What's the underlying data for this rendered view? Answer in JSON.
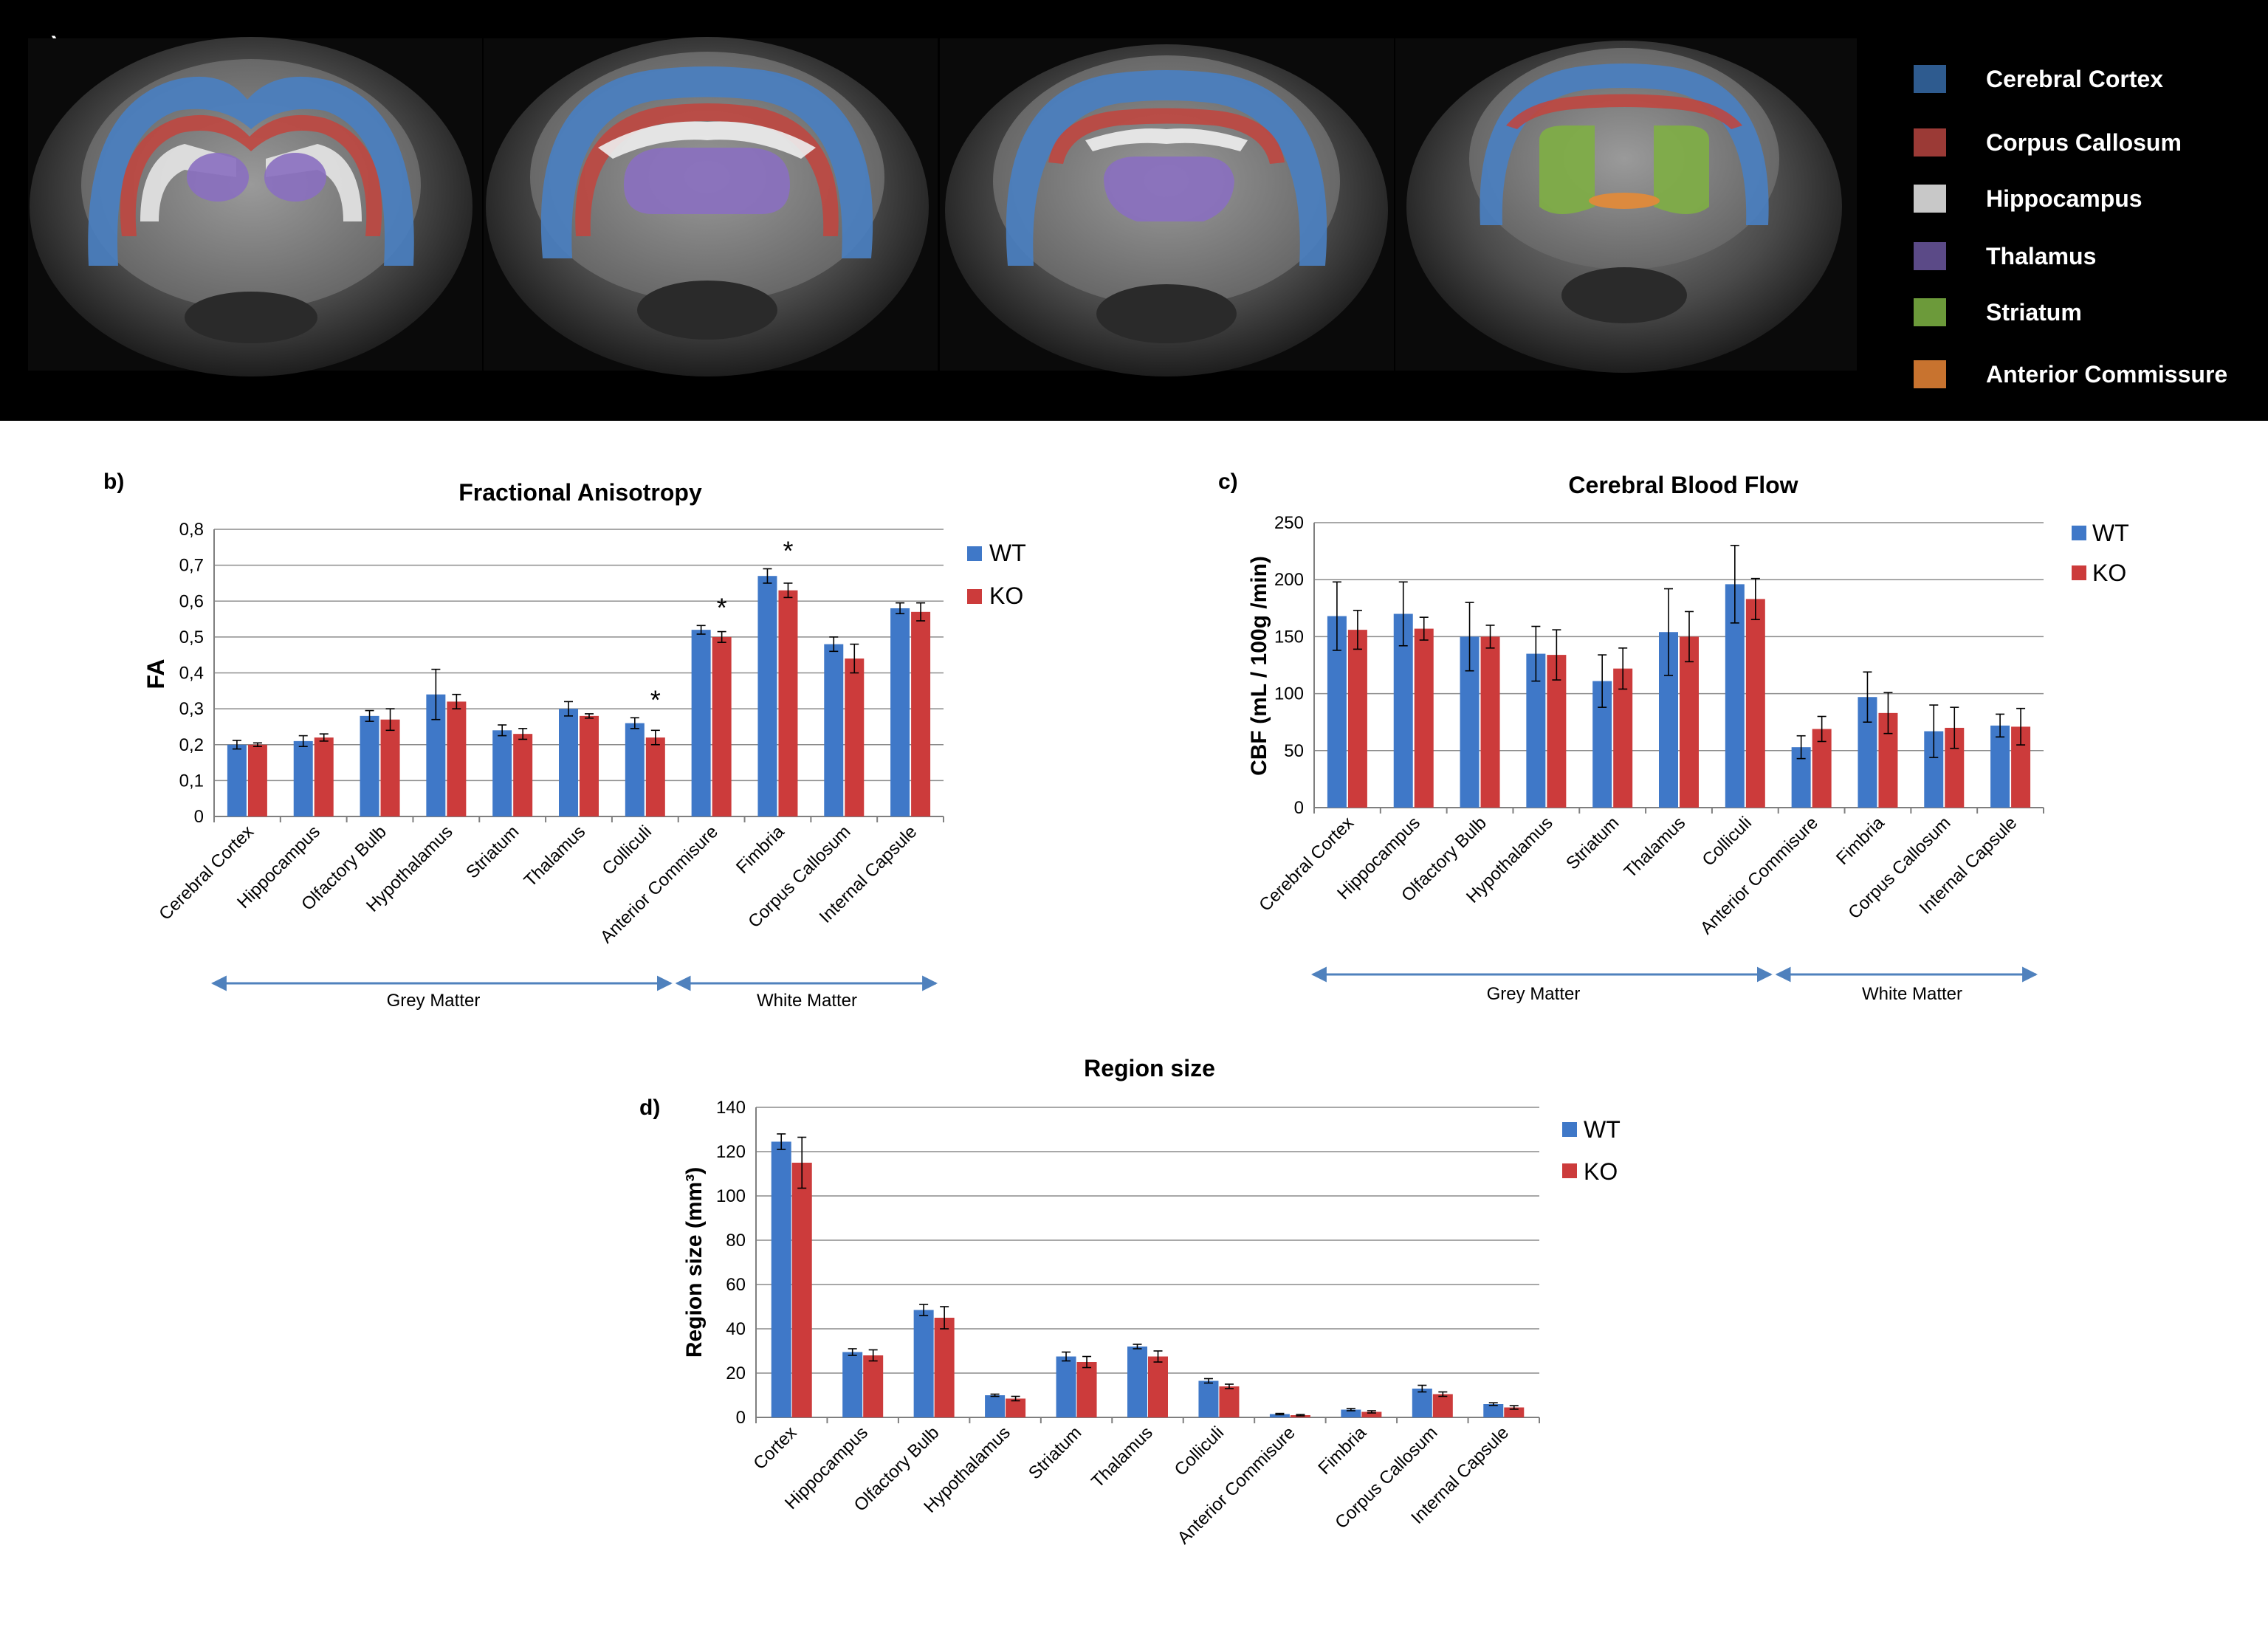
{
  "panel_a": {
    "label": "a)",
    "legend": [
      {
        "name": "Cerebral Cortex",
        "color": "#2e5b8f"
      },
      {
        "name": "Corpus Callosum",
        "color": "#9b3a36"
      },
      {
        "name": "Hippocampus",
        "color": "#c8c8c8"
      },
      {
        "name": "Thalamus",
        "color": "#5b4a87"
      },
      {
        "name": "Striatum",
        "color": "#6c9a3a"
      },
      {
        "name": "Anterior Commissure",
        "color": "#c8732f"
      }
    ]
  },
  "series_colors": {
    "WT": "#3f78c8",
    "KO": "#cc3b3b",
    "arrow": "#4f81bd"
  },
  "chart_data": [
    {
      "panel": "b)",
      "type": "bar",
      "title": "Fractional Anisotropy",
      "xlabel": "",
      "ylabel": "FA",
      "ylim": [
        0,
        0.8
      ],
      "yticks": [
        "0",
        "0,1",
        "0,2",
        "0,3",
        "0,4",
        "0,5",
        "0,6",
        "0,7",
        "0,8"
      ],
      "grid": true,
      "legend_position": "right",
      "categories": [
        "Cerebral Cortex",
        "Hippocampus",
        "Olfactory Bulb",
        "Hypothalamus",
        "Striatum",
        "Thalamus",
        "Colliculi",
        "Anterior Commisure",
        "Fimbria",
        "Corpus Callosum",
        "Internal Capsule"
      ],
      "series": [
        {
          "name": "WT",
          "values": [
            0.2,
            0.21,
            0.28,
            0.34,
            0.24,
            0.3,
            0.26,
            0.52,
            0.67,
            0.48,
            0.58
          ],
          "errors": [
            0.012,
            0.015,
            0.015,
            0.07,
            0.015,
            0.02,
            0.015,
            0.012,
            0.02,
            0.02,
            0.015
          ]
        },
        {
          "name": "KO",
          "values": [
            0.2,
            0.22,
            0.27,
            0.32,
            0.23,
            0.28,
            0.22,
            0.5,
            0.63,
            0.44,
            0.57
          ],
          "errors": [
            0.005,
            0.01,
            0.03,
            0.02,
            0.015,
            0.006,
            0.02,
            0.015,
            0.02,
            0.04,
            0.025
          ]
        }
      ],
      "significance": [
        {
          "category": "Colliculi",
          "label": "*"
        },
        {
          "category": "Anterior Commisure",
          "label": "*"
        },
        {
          "category": "Fimbria",
          "label": "*"
        }
      ],
      "groups": [
        {
          "label": "Grey Matter",
          "from": "Cerebral Cortex",
          "to": "Colliculi"
        },
        {
          "label": "White Matter",
          "from": "Anterior Commisure",
          "to": "Internal Capsule"
        }
      ]
    },
    {
      "panel": "c)",
      "type": "bar",
      "title": "Cerebral Blood Flow",
      "xlabel": "",
      "ylabel": "CBF (mL / 100g /min)",
      "ylim": [
        0,
        250
      ],
      "yticks": [
        "0",
        "50",
        "100",
        "150",
        "200",
        "250"
      ],
      "grid": true,
      "legend_position": "right",
      "categories": [
        "Cerebral Cortex",
        "Hippocampus",
        "Olfactory Bulb",
        "Hypothalamus",
        "Striatum",
        "Thalamus",
        "Colliculi",
        "Anterior Commisure",
        "Fimbria",
        "Corpus Callosum",
        "Internal Capsule"
      ],
      "series": [
        {
          "name": "WT",
          "values": [
            168,
            170,
            150,
            135,
            111,
            154,
            196,
            53,
            97,
            67,
            72
          ],
          "errors": [
            30,
            28,
            30,
            24,
            23,
            38,
            34,
            10,
            22,
            23,
            10
          ]
        },
        {
          "name": "KO",
          "values": [
            156,
            157,
            150,
            134,
            122,
            150,
            183,
            69,
            83,
            70,
            71
          ],
          "errors": [
            17,
            10,
            10,
            22,
            18,
            22,
            18,
            11,
            18,
            18,
            16
          ]
        }
      ],
      "significance": [],
      "groups": [
        {
          "label": "Grey Matter",
          "from": "Cerebral Cortex",
          "to": "Colliculi"
        },
        {
          "label": "White Matter",
          "from": "Anterior Commisure",
          "to": "Internal Capsule"
        }
      ]
    },
    {
      "panel": "d)",
      "type": "bar",
      "title": "Region size",
      "xlabel": "",
      "ylabel": "Region size (mm³)",
      "ylim": [
        0,
        140
      ],
      "yticks": [
        "0",
        "20",
        "40",
        "60",
        "80",
        "100",
        "120",
        "140"
      ],
      "grid": true,
      "legend_position": "right",
      "categories": [
        "Cortex",
        "Hippocampus",
        "Olfactory Bulb",
        "Hypothalamus",
        "Striatum",
        "Thalamus",
        "Colliculi",
        "Anterior Commisure",
        "Fimbria",
        "Corpus Callosum",
        "Internal Capsule"
      ],
      "series": [
        {
          "name": "WT",
          "values": [
            124.5,
            29.5,
            48.5,
            10,
            27.5,
            32,
            16.5,
            1.5,
            3.5,
            13,
            6
          ],
          "errors": [
            3.5,
            1.5,
            2.5,
            0.5,
            2,
            1,
            1,
            0.3,
            0.5,
            1.5,
            0.6
          ]
        },
        {
          "name": "KO",
          "values": [
            115,
            28,
            45,
            8.5,
            25,
            27.5,
            14,
            1,
            2.5,
            10.5,
            4.5
          ],
          "errors": [
            11.5,
            2.5,
            5,
            1,
            2.5,
            2.5,
            1,
            0.3,
            0.5,
            1,
            0.8
          ]
        }
      ],
      "significance": [],
      "groups": []
    }
  ]
}
